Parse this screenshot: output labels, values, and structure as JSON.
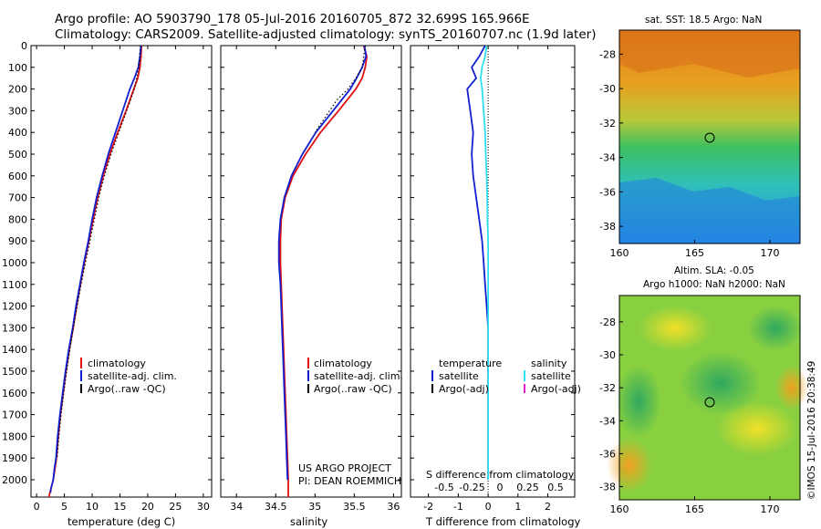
{
  "header": {
    "title_line1": "Argo profile: AO 5903790_178 05-Jul-2016 20160705_872 32.699S 165.966E",
    "title_line2": "Climatology: CARS2009. Satellite-adjusted climatology: synTS_20160707.nc (1.9d later)"
  },
  "colors": {
    "climatology": "#e01010",
    "satellite": "#1020d0",
    "argo": "#000000",
    "salinity_satellite": "#30e0f0",
    "salinity_argo": "#e020c0"
  },
  "depth_ticks": [
    "0",
    "100",
    "200",
    "300",
    "400",
    "500",
    "600",
    "700",
    "800",
    "900",
    "1000",
    "1100",
    "1200",
    "1300",
    "1400",
    "1500",
    "1600",
    "1700",
    "1800",
    "1900",
    "2000"
  ],
  "temperature_panel": {
    "xlabel": "temperature (deg C)",
    "xticks": [
      "0",
      "5",
      "10",
      "15",
      "20",
      "25",
      "30"
    ],
    "legend": [
      "climatology",
      "satellite-adj. clim.",
      "Argo(..raw -QC)"
    ]
  },
  "salinity_panel": {
    "xlabel": "salinity",
    "xticks": [
      "34",
      "34.5",
      "35",
      "35.5",
      "36"
    ],
    "legend": [
      "climatology",
      "satellite-adj. clim.",
      "Argo(..raw -QC)"
    ],
    "credit_line1": "US ARGO PROJECT",
    "credit_line2": "PI: DEAN ROEMMICH"
  },
  "difference_panel": {
    "legend_temperature_title": "temperature",
    "legend_salinity_title": "salinity",
    "legend_temperature": [
      "satellite",
      "Argo(-adj)"
    ],
    "legend_salinity": [
      "satellite",
      "Argo(-adj)"
    ],
    "s_label": "S difference from climatology",
    "s_ticks": [
      "-0.5",
      "-0.25",
      "0",
      "0.25",
      "0.5"
    ],
    "t_label": "T difference from climatology",
    "t_ticks": [
      "-2",
      "-1",
      "0",
      "1",
      "2"
    ]
  },
  "sst_map": {
    "title": "sat. SST: 18.5 Argo: NaN",
    "yticks": [
      "-28",
      "-30",
      "-32",
      "-34",
      "-36",
      "-38"
    ],
    "xticks": [
      "160",
      "165",
      "170"
    ]
  },
  "sla_map": {
    "title_line1": "Altim. SLA: -0.05",
    "title_line2": "Argo h1000: NaN h2000: NaN",
    "yticks": [
      "-28",
      "-30",
      "-32",
      "-34",
      "-36",
      "-38"
    ],
    "xticks": [
      "160",
      "165",
      "170"
    ]
  },
  "stamp": "©IMOS 15-Jul-2016 20:38:49",
  "chart_data": [
    {
      "type": "line",
      "xlabel": "temperature (deg C)",
      "ylabel": "",
      "xlim": [
        -1,
        31.5
      ],
      "ylim": [
        2080,
        0
      ],
      "series": [
        {
          "name": "climatology",
          "x": [
            18.9,
            18.8,
            18.6,
            18.2,
            17.5,
            16.1,
            14.6,
            13.2,
            12.0,
            11.0,
            10.2,
            9.4,
            8.6,
            7.9,
            7.2,
            6.6,
            5.9,
            5.3,
            4.8,
            4.3,
            3.9,
            3.6,
            3.3,
            3.0,
            2.8,
            2.6,
            2.4,
            2.3,
            2.3
          ],
          "y": [
            0,
            50,
            100,
            150,
            200,
            300,
            400,
            500,
            600,
            700,
            800,
            900,
            1000,
            1100,
            1200,
            1300,
            1400,
            1500,
            1600,
            1700,
            1800,
            1900,
            1950,
            2000,
            2020,
            2040,
            2060,
            2070,
            2080
          ]
        },
        {
          "name": "satellite-adj. clim.",
          "x": [
            18.8,
            18.6,
            18.3,
            17.6,
            16.8,
            15.5,
            14.2,
            12.9,
            11.8,
            10.8,
            10.0,
            9.3,
            8.5,
            7.8,
            7.1,
            6.5,
            5.8,
            5.2,
            4.7,
            4.2,
            3.8,
            3.5,
            3.2,
            3.0,
            2.8,
            2.6,
            2.5
          ],
          "y": [
            0,
            50,
            100,
            150,
            200,
            300,
            400,
            500,
            600,
            700,
            800,
            900,
            1000,
            1100,
            1200,
            1300,
            1400,
            1500,
            1600,
            1700,
            1800,
            1900,
            1950,
            2000,
            2020,
            2040,
            2060
          ]
        },
        {
          "name": "Argo(..raw -QC)",
          "x": [
            18.7,
            18.4,
            17.6,
            16.2,
            14.8,
            13.4,
            12.2,
            11.2,
            10.4,
            9.6,
            8.8,
            8.0,
            7.3,
            6.6,
            6.0,
            5.4,
            4.9,
            4.4,
            4.0,
            3.7
          ],
          "y": [
            0,
            100,
            200,
            300,
            400,
            500,
            600,
            700,
            800,
            900,
            1000,
            1100,
            1200,
            1300,
            1400,
            1500,
            1600,
            1700,
            1800,
            1900
          ]
        }
      ]
    },
    {
      "type": "line",
      "xlabel": "salinity",
      "ylabel": "",
      "xlim": [
        33.8,
        36.1
      ],
      "ylim": [
        2080,
        0
      ],
      "series": [
        {
          "name": "climatology",
          "x": [
            35.62,
            35.66,
            35.64,
            35.6,
            35.52,
            35.3,
            35.07,
            34.88,
            34.72,
            34.62,
            34.57,
            34.56,
            34.56,
            34.57,
            34.58,
            34.59,
            34.6,
            34.61,
            34.62,
            34.63,
            34.64,
            34.65,
            34.66,
            34.66
          ],
          "y": [
            0,
            50,
            100,
            150,
            200,
            300,
            400,
            500,
            600,
            700,
            800,
            900,
            1000,
            1100,
            1200,
            1300,
            1400,
            1500,
            1600,
            1700,
            1800,
            1900,
            2000,
            2080
          ]
        },
        {
          "name": "satellite-adj. clim.",
          "x": [
            35.63,
            35.65,
            35.6,
            35.53,
            35.45,
            35.23,
            35.01,
            34.84,
            34.7,
            34.61,
            34.56,
            34.54,
            34.54,
            34.56,
            34.57,
            34.58,
            34.59,
            34.6,
            34.61,
            34.62,
            34.63,
            34.64,
            34.65
          ],
          "y": [
            0,
            50,
            100,
            150,
            200,
            300,
            400,
            500,
            600,
            700,
            800,
            900,
            1000,
            1100,
            1200,
            1300,
            1400,
            1500,
            1600,
            1700,
            1800,
            1900,
            2000
          ]
        },
        {
          "name": "Argo(..raw -QC)",
          "x": [
            35.64,
            35.6,
            35.52,
            35.42,
            35.28,
            35.0
          ],
          "y": [
            0,
            100,
            150,
            200,
            250,
            400
          ]
        }
      ]
    },
    {
      "type": "line",
      "xlabel": "T difference from climatology",
      "ylabel": "",
      "xlim": [
        -2.6,
        2.9
      ],
      "ylim": [
        2080,
        0
      ],
      "series": [
        {
          "name": "temperature satellite",
          "x": [
            -0.1,
            -0.3,
            -0.55,
            -0.4,
            -0.7,
            -0.6,
            -0.5,
            -0.55,
            -0.5,
            -0.4,
            -0.3,
            -0.2,
            -0.15,
            -0.1,
            -0.05,
            0,
            0,
            0,
            0,
            0,
            0
          ],
          "y": [
            0,
            50,
            100,
            150,
            200,
            300,
            400,
            500,
            600,
            700,
            800,
            900,
            1000,
            1100,
            1200,
            1300,
            1400,
            1500,
            1600,
            1800,
            2000
          ]
        },
        {
          "name": "salinity satellite",
          "x": [
            -0.05,
            -0.1,
            -0.2,
            -0.25,
            -0.2,
            -0.15,
            -0.1,
            -0.08,
            -0.05,
            -0.03,
            -0.02,
            0,
            0,
            0,
            0,
            0,
            0,
            0,
            0,
            0
          ],
          "y": [
            0,
            50,
            100,
            150,
            200,
            300,
            400,
            500,
            600,
            700,
            800,
            900,
            1000,
            1100,
            1200,
            1400,
            1500,
            1600,
            1800,
            2000
          ]
        }
      ]
    }
  ]
}
